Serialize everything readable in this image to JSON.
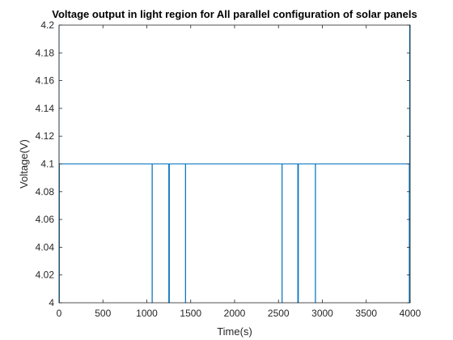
{
  "chart_data": {
    "type": "line",
    "title": "Voltage output in light region for All parallel configuration of solar panels",
    "xlabel": "Time(s)",
    "ylabel": "Voltage(V)",
    "xlim": [
      0,
      4000
    ],
    "ylim": [
      4.0,
      4.2
    ],
    "xticks": [
      0,
      500,
      1000,
      1500,
      2000,
      2500,
      3000,
      3500,
      4000
    ],
    "xtick_labels": [
      "0",
      "500",
      "1000",
      "1500",
      "2000",
      "2500",
      "3000",
      "3500",
      "4000"
    ],
    "yticks": [
      4.0,
      4.02,
      4.04,
      4.06,
      4.08,
      4.1,
      4.12,
      4.14,
      4.16,
      4.18,
      4.2
    ],
    "ytick_labels": [
      "4",
      "4.02",
      "4.04",
      "4.06",
      "4.08",
      "4.1",
      "4.12",
      "4.14",
      "4.16",
      "4.18",
      "4.2"
    ],
    "grid": false,
    "legend": "none",
    "colors": {
      "series": "#0072BD",
      "axes": "#262626",
      "background": "#ffffff"
    },
    "series": [
      {
        "x": [
          0,
          0,
          0,
          4,
          4,
          1060,
          1060,
          1062,
          1062,
          1250,
          1250,
          1252,
          1252,
          1255,
          1255,
          1257,
          1257,
          1440,
          1440,
          1442,
          1442,
          2540,
          2540,
          2542,
          2542,
          2720,
          2720,
          2722,
          2722,
          2725,
          2725,
          2727,
          2727,
          2920,
          2920,
          2922,
          2922,
          3990,
          3990,
          3994,
          3994,
          3997,
          3997,
          4000
        ],
        "y": [
          4.1,
          4.2,
          4.0,
          4.0,
          4.1,
          4.1,
          4.0,
          4.0,
          4.1,
          4.1,
          4.0,
          4.0,
          4.1,
          4.1,
          4.0,
          4.0,
          4.1,
          4.1,
          4.0,
          4.0,
          4.1,
          4.1,
          4.0,
          4.0,
          4.1,
          4.1,
          4.0,
          4.0,
          4.1,
          4.1,
          4.0,
          4.0,
          4.1,
          4.1,
          4.0,
          4.0,
          4.1,
          4.1,
          4.0,
          4.0,
          4.2,
          4.2,
          4.1,
          4.1
        ]
      }
    ]
  }
}
